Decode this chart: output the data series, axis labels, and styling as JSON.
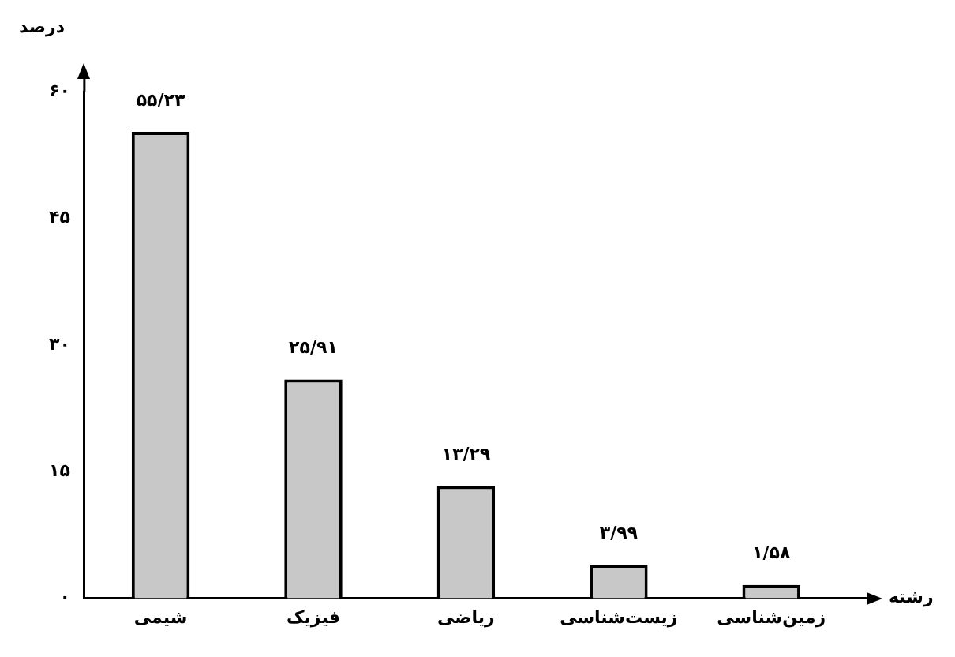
{
  "chart_data": {
    "type": "bar",
    "ylabel": "درصد",
    "xlabel": "رشته",
    "categories": [
      "شیمی",
      "فیزیک",
      "ریاضی",
      "زیست‌شناسی",
      "زمین‌شناسی"
    ],
    "values": [
      55.23,
      25.91,
      13.29,
      3.99,
      1.58
    ],
    "value_labels": [
      "۵۵/۲۳",
      "۲۵/۹۱",
      "۱۳/۲۹",
      "۳/۹۹",
      "۱/۵۸"
    ],
    "color": "#c8c8c8",
    "ylim": [
      0,
      60
    ],
    "yticks": [
      {
        "value": 0,
        "label": "۰"
      },
      {
        "value": 15,
        "label": "۱۵"
      },
      {
        "value": 30,
        "label": "۳۰"
      },
      {
        "value": 45,
        "label": "۴۵"
      },
      {
        "value": 60,
        "label": "۶۰"
      }
    ],
    "grid": false,
    "legend": false
  }
}
